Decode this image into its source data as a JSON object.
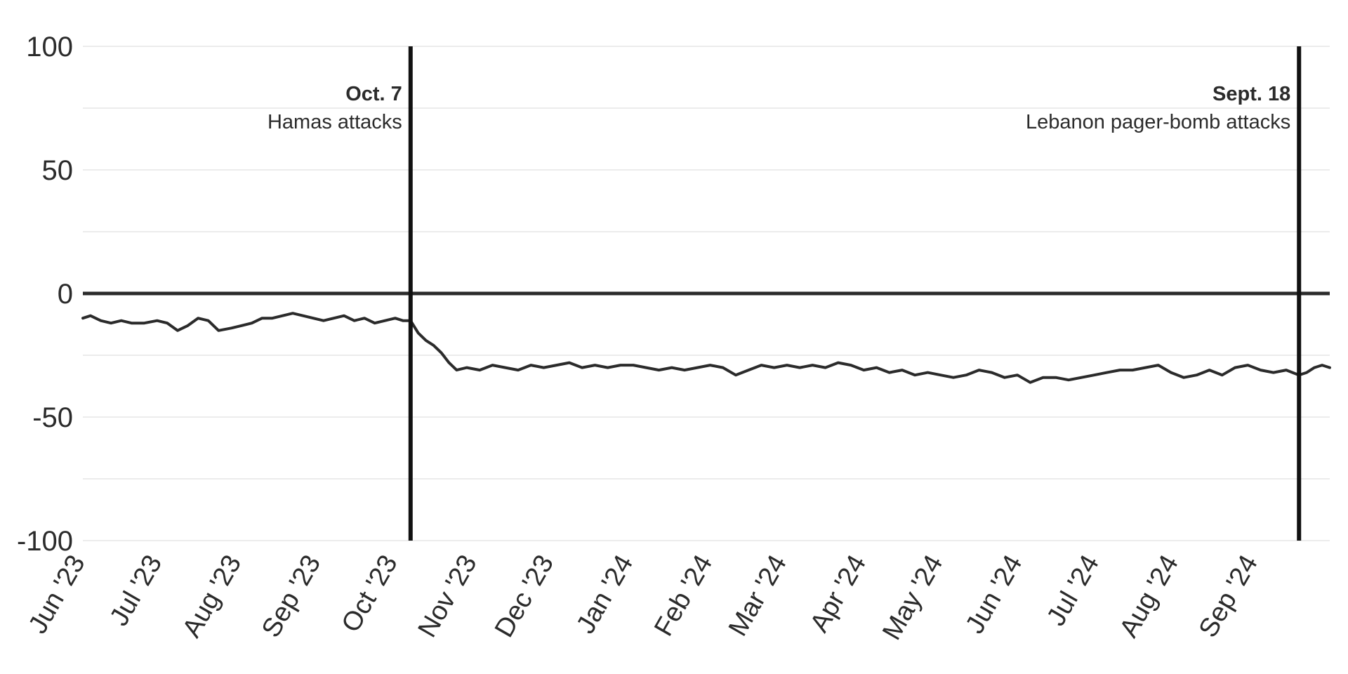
{
  "chart_data": {
    "type": "line",
    "title": "",
    "xlabel": "",
    "ylabel": "",
    "ylim": [
      -100,
      100
    ],
    "yticks": [
      "100",
      "50",
      "0",
      "-50",
      "-100"
    ],
    "xlim": [
      "2023-06-01",
      "2024-09-30"
    ],
    "xticks": [
      {
        "date": "2023-06-01",
        "label": "Jun '23"
      },
      {
        "date": "2023-07-01",
        "label": "Jul '23"
      },
      {
        "date": "2023-08-01",
        "label": "Aug '23"
      },
      {
        "date": "2023-09-01",
        "label": "Sep '23"
      },
      {
        "date": "2023-10-01",
        "label": "Oct '23"
      },
      {
        "date": "2023-11-01",
        "label": "Nov '23"
      },
      {
        "date": "2023-12-01",
        "label": "Dec '23"
      },
      {
        "date": "2024-01-01",
        "label": "Jan '24"
      },
      {
        "date": "2024-02-01",
        "label": "Feb '24"
      },
      {
        "date": "2024-03-01",
        "label": "Mar '24"
      },
      {
        "date": "2024-04-01",
        "label": "Apr '24"
      },
      {
        "date": "2024-05-01",
        "label": "May '24"
      },
      {
        "date": "2024-06-01",
        "label": "Jun '24"
      },
      {
        "date": "2024-07-01",
        "label": "Jul '24"
      },
      {
        "date": "2024-08-01",
        "label": "Aug '24"
      },
      {
        "date": "2024-09-01",
        "label": "Sep '24"
      }
    ],
    "grid": true,
    "zero_line": true,
    "colors": {
      "line": "#2b2b2b",
      "grid": "#e6e6e6",
      "zero_line": "#2b2b2b",
      "event_line": "#111111",
      "text": "#2b2b2b"
    },
    "annotations": [
      {
        "date": "2023-10-07",
        "label": "Oct. 7",
        "text": "Hamas attacks"
      },
      {
        "date": "2024-09-18",
        "label": "Sept. 18",
        "text": "Lebanon pager-bomb attacks"
      }
    ],
    "series": [
      {
        "x": [
          "2023-06-01",
          "2023-06-04",
          "2023-06-08",
          "2023-06-12",
          "2023-06-16",
          "2023-06-20",
          "2023-06-25",
          "2023-06-30",
          "2023-07-04",
          "2023-07-08",
          "2023-07-12",
          "2023-07-16",
          "2023-07-20",
          "2023-07-24",
          "2023-07-29",
          "2023-08-02",
          "2023-08-06",
          "2023-08-10",
          "2023-08-14",
          "2023-08-18",
          "2023-08-22",
          "2023-08-26",
          "2023-08-30",
          "2023-09-03",
          "2023-09-07",
          "2023-09-11",
          "2023-09-15",
          "2023-09-19",
          "2023-09-23",
          "2023-09-27",
          "2023-10-01",
          "2023-10-04",
          "2023-10-07",
          "2023-10-10",
          "2023-10-13",
          "2023-10-16",
          "2023-10-19",
          "2023-10-22",
          "2023-10-25",
          "2023-10-29",
          "2023-11-03",
          "2023-11-08",
          "2023-11-13",
          "2023-11-18",
          "2023-11-23",
          "2023-11-28",
          "2023-12-03",
          "2023-12-08",
          "2023-12-13",
          "2023-12-18",
          "2023-12-23",
          "2023-12-28",
          "2024-01-02",
          "2024-01-07",
          "2024-01-12",
          "2024-01-17",
          "2024-01-22",
          "2024-01-27",
          "2024-02-01",
          "2024-02-06",
          "2024-02-11",
          "2024-02-16",
          "2024-02-21",
          "2024-02-26",
          "2024-03-02",
          "2024-03-07",
          "2024-03-12",
          "2024-03-17",
          "2024-03-22",
          "2024-03-27",
          "2024-04-01",
          "2024-04-06",
          "2024-04-11",
          "2024-04-16",
          "2024-04-21",
          "2024-04-26",
          "2024-05-01",
          "2024-05-06",
          "2024-05-11",
          "2024-05-16",
          "2024-05-21",
          "2024-05-26",
          "2024-05-31",
          "2024-06-05",
          "2024-06-10",
          "2024-06-15",
          "2024-06-20",
          "2024-06-25",
          "2024-06-30",
          "2024-07-05",
          "2024-07-10",
          "2024-07-15",
          "2024-07-20",
          "2024-07-25",
          "2024-07-30",
          "2024-08-04",
          "2024-08-09",
          "2024-08-14",
          "2024-08-19",
          "2024-08-24",
          "2024-08-29",
          "2024-09-03",
          "2024-09-08",
          "2024-09-13",
          "2024-09-18",
          "2024-09-21",
          "2024-09-24",
          "2024-09-27",
          "2024-09-30"
        ],
        "values": [
          -10,
          -9,
          -11,
          -12,
          -11,
          -12,
          -12,
          -11,
          -12,
          -15,
          -13,
          -10,
          -11,
          -15,
          -14,
          -13,
          -12,
          -10,
          -10,
          -9,
          -8,
          -9,
          -10,
          -11,
          -10,
          -9,
          -11,
          -10,
          -12,
          -11,
          -10,
          -11,
          -11,
          -16,
          -19,
          -21,
          -24,
          -28,
          -31,
          -30,
          -31,
          -29,
          -30,
          -31,
          -29,
          -30,
          -29,
          -28,
          -30,
          -29,
          -30,
          -29,
          -29,
          -30,
          -31,
          -30,
          -31,
          -30,
          -29,
          -30,
          -33,
          -31,
          -29,
          -30,
          -29,
          -30,
          -29,
          -30,
          -28,
          -29,
          -31,
          -30,
          -32,
          -31,
          -33,
          -32,
          -33,
          -34,
          -33,
          -31,
          -32,
          -34,
          -33,
          -36,
          -34,
          -34,
          -35,
          -34,
          -33,
          -32,
          -31,
          -31,
          -30,
          -29,
          -32,
          -34,
          -33,
          -31,
          -33,
          -30,
          -29,
          -31,
          -32,
          -31,
          -33,
          -32,
          -30,
          -29,
          -30
        ]
      }
    ]
  }
}
